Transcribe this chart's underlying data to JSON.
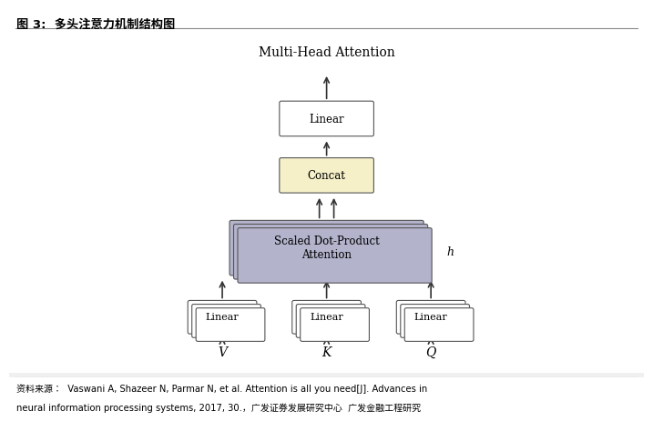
{
  "title": "Multi-Head Attention",
  "header": "图 3:  多头注意力机制结构图",
  "footer_line1": "资料来源：  Vaswani A, Shazeer N, Parmar N, et al. Attention is all you need[J]. Advances in",
  "footer_line2": "neural information processing systems, 2017, 30.，广发证券发展研究中心  广发金融工程研究",
  "bg_color": "#f5f5f5",
  "box_white": "#ffffff",
  "box_purple": "#b3b3cc",
  "box_yellow": "#f5f0c8",
  "box_edge": "#555555",
  "arrow_color": "#333333",
  "labels": {
    "linear_top": "Linear",
    "concat": "Concat",
    "attention": "Scaled Dot-Product\nAttention",
    "linear_v": "Linear",
    "linear_k": "Linear",
    "linear_q": "Linear",
    "V": "V",
    "K": "K",
    "Q": "Q",
    "h_label": "h"
  }
}
